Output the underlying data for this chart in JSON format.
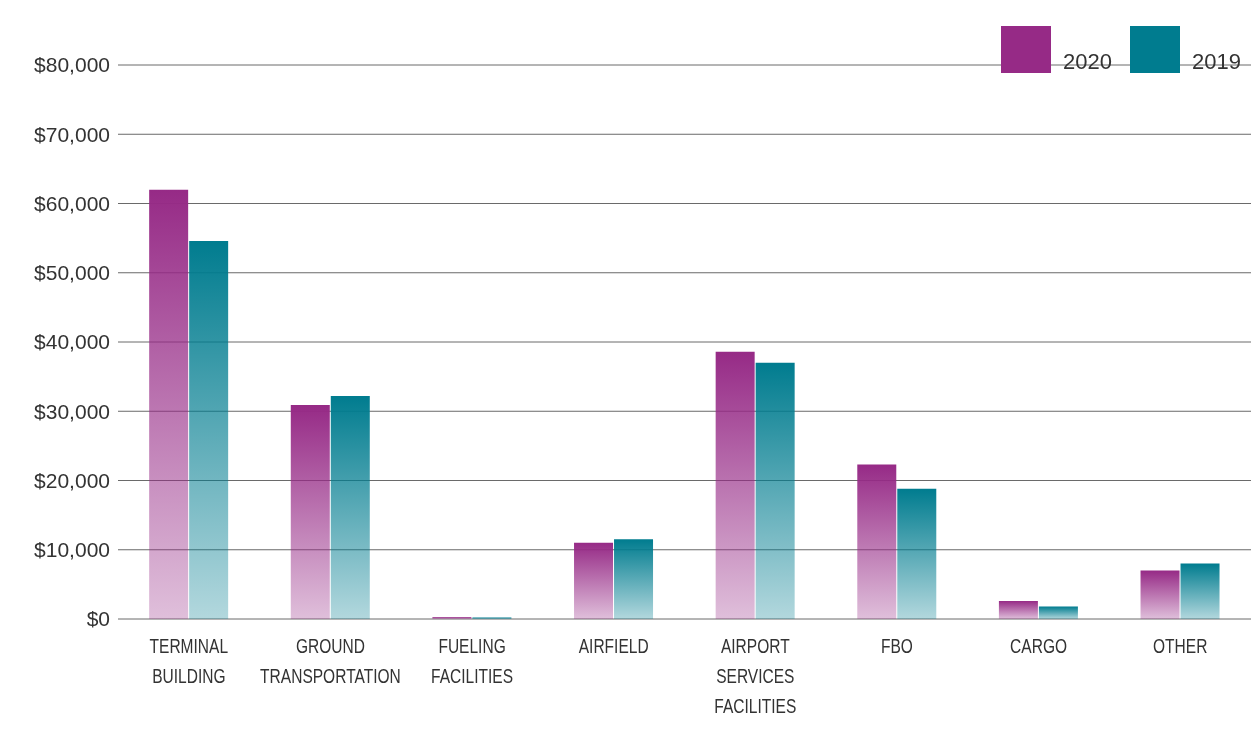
{
  "chart_data": {
    "type": "bar",
    "categories": [
      "TERMINAL BUILDING",
      "GROUND TRANSPORTATION",
      "FUELING FACILITIES",
      "AIRFIELD",
      "AIRPORT SERVICES FACILITIES",
      "FBO",
      "CARGO",
      "OTHER"
    ],
    "series": [
      {
        "name": "2020",
        "color": "#962a86",
        "values": [
          62000,
          30900,
          300,
          11000,
          38600,
          22300,
          2600,
          7000
        ]
      },
      {
        "name": "2019",
        "color": "#007c8f",
        "values": [
          54600,
          32200,
          200,
          11500,
          37000,
          18800,
          1800,
          8000
        ]
      }
    ],
    "ylim": [
      0,
      80000
    ],
    "yticks": [
      {
        "value": 0,
        "label": "$0"
      },
      {
        "value": 10000,
        "label": "$10,000"
      },
      {
        "value": 20000,
        "label": "$20,000"
      },
      {
        "value": 30000,
        "label": "$30,000"
      },
      {
        "value": 40000,
        "label": "$40,000"
      },
      {
        "value": 50000,
        "label": "$50,000"
      },
      {
        "value": 60000,
        "label": "$60,000"
      },
      {
        "value": 70000,
        "label": "$70,000"
      },
      {
        "value": 80000,
        "label": "$80,000"
      }
    ],
    "grid": "y",
    "legend": "top right"
  }
}
